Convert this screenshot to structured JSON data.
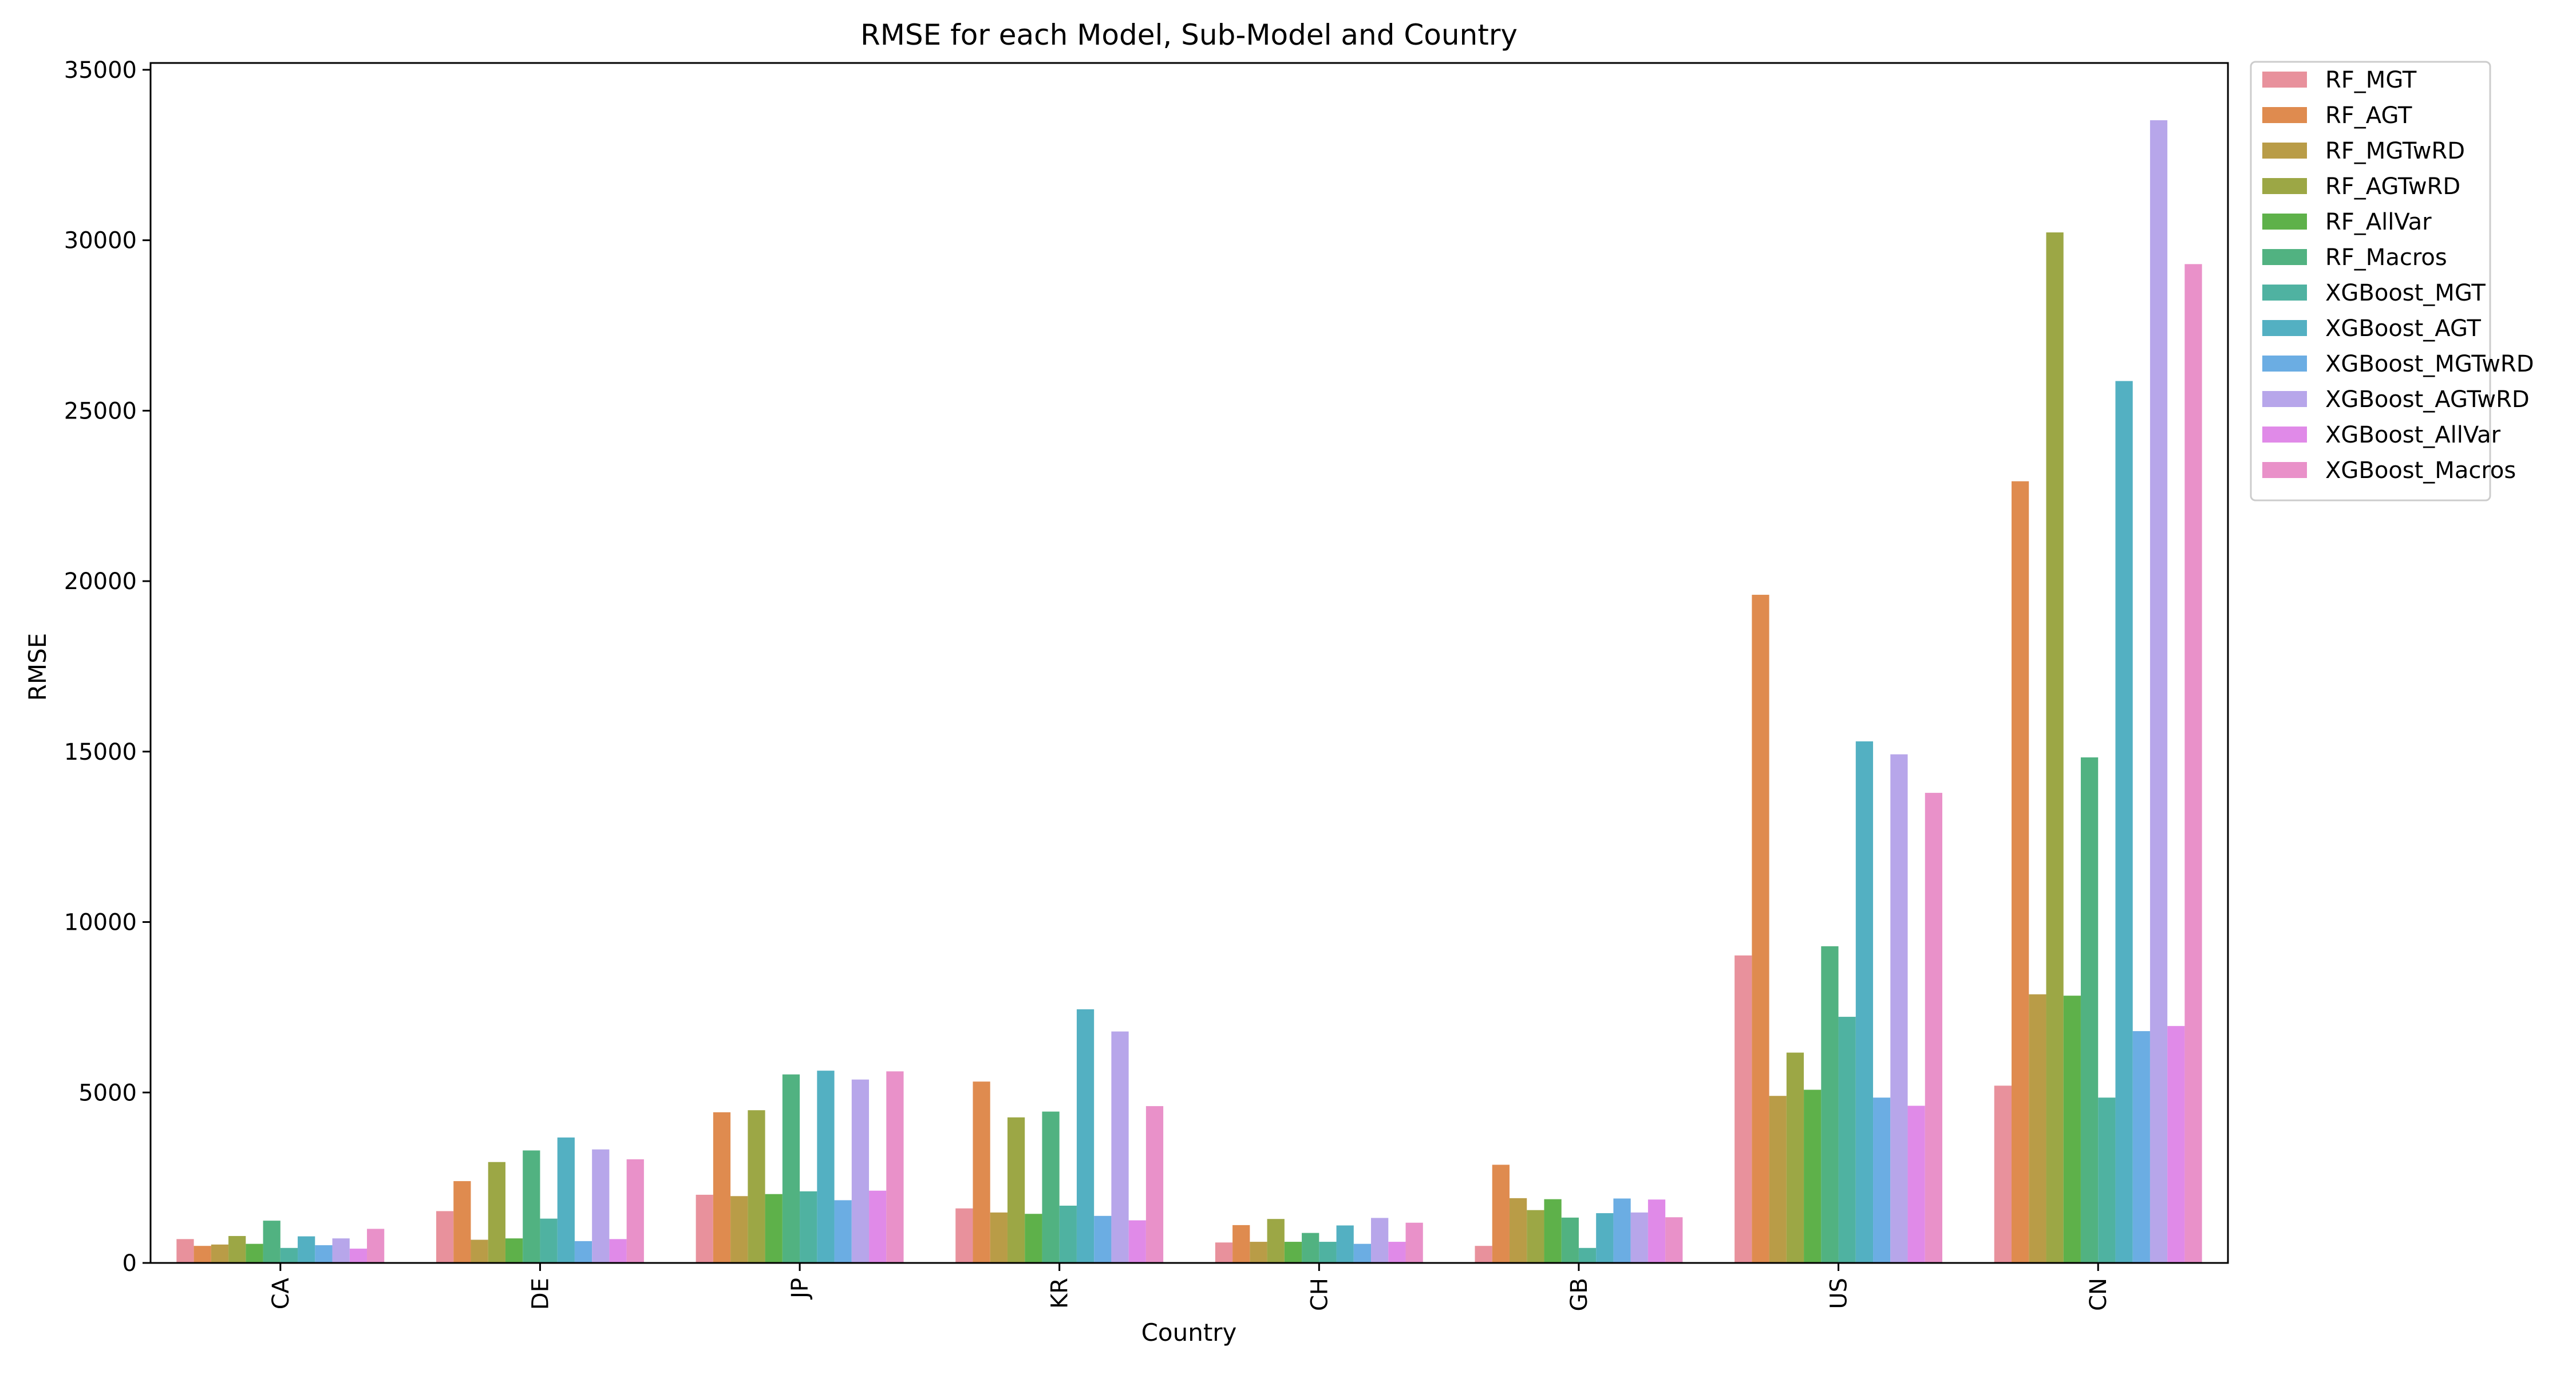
{
  "chart_data": {
    "type": "bar",
    "title": "RMSE for each Model, Sub-Model and Country",
    "xlabel": "Country",
    "ylabel": "RMSE",
    "ylim": [
      0,
      35200
    ],
    "yticks": [
      0,
      5000,
      10000,
      15000,
      20000,
      25000,
      30000,
      35000
    ],
    "grid": false,
    "legend_position": "outside-top-right",
    "categories": [
      "CA",
      "DE",
      "JP",
      "KR",
      "CH",
      "GB",
      "US",
      "CN"
    ],
    "series": [
      {
        "name": "RF_MGT",
        "color": "#e8919c",
        "values": [
          700,
          1520,
          2000,
          1600,
          600,
          500,
          9020,
          5200
        ]
      },
      {
        "name": "RF_AGT",
        "color": "#df8b4f",
        "values": [
          500,
          2400,
          4420,
          5320,
          1110,
          2880,
          19600,
          22930
        ]
      },
      {
        "name": "RF_MGTwRD",
        "color": "#b99c47",
        "values": [
          540,
          680,
          1960,
          1480,
          620,
          1900,
          4900,
          7880
        ]
      },
      {
        "name": "RF_AGTwRD",
        "color": "#9ca745",
        "values": [
          790,
          2960,
          4480,
          4270,
          1290,
          1550,
          6170,
          30230
        ]
      },
      {
        "name": "RF_AllVar",
        "color": "#5eb14a",
        "values": [
          560,
          720,
          2020,
          1440,
          620,
          1870,
          5080,
          7840
        ]
      },
      {
        "name": "RF_Macros",
        "color": "#51b281",
        "values": [
          1240,
          3300,
          5530,
          4440,
          880,
          1330,
          9290,
          14830
        ]
      },
      {
        "name": "XGBoost_MGT",
        "color": "#4fb2a1",
        "values": [
          440,
          1300,
          2100,
          1680,
          620,
          440,
          7220,
          4850
        ]
      },
      {
        "name": "XGBoost_AGT",
        "color": "#53b0c2",
        "values": [
          780,
          3680,
          5640,
          7440,
          1100,
          1460,
          15300,
          25870
        ]
      },
      {
        "name": "XGBoost_MGTwRD",
        "color": "#6bade3",
        "values": [
          520,
          640,
          1840,
          1380,
          560,
          1890,
          4850,
          6800
        ]
      },
      {
        "name": "XGBoost_AGTwRD",
        "color": "#b7a6ea",
        "values": [
          720,
          3330,
          5380,
          6790,
          1320,
          1480,
          14920,
          33520
        ]
      },
      {
        "name": "XGBoost_AllVar",
        "color": "#e08ae8",
        "values": [
          420,
          700,
          2120,
          1250,
          620,
          1860,
          4610,
          6950
        ]
      },
      {
        "name": "XGBoost_Macros",
        "color": "#e991c9",
        "values": [
          1000,
          3040,
          5620,
          4600,
          1180,
          1340,
          13790,
          29300
        ]
      }
    ]
  }
}
